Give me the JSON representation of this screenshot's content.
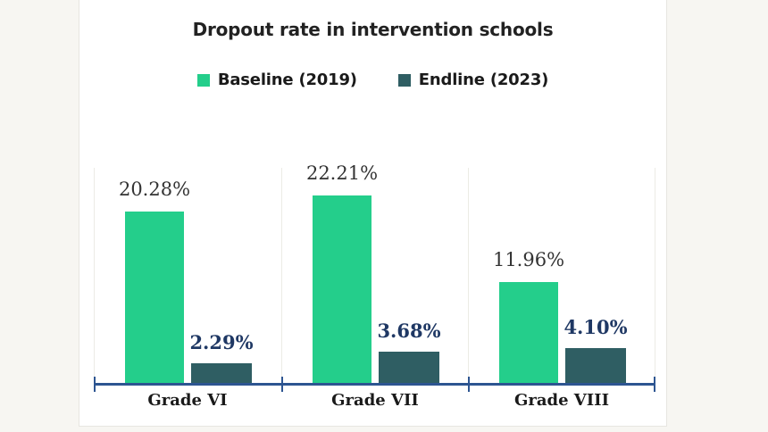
{
  "chart_data": {
    "type": "bar",
    "title": "Dropout rate in intervention schools",
    "categories": [
      "Grade VI",
      "Grade VII",
      "Grade VIII"
    ],
    "series": [
      {
        "name": "Baseline (2019)",
        "values": [
          20.28,
          22.21,
          11.96
        ],
        "color": "#24ce8b",
        "label_color": "#333333",
        "label_bold": false
      },
      {
        "name": "Endline (2023)",
        "values": [
          2.29,
          3.68,
          4.1
        ],
        "color": "#2f5e63",
        "label_color": "#1f3864",
        "label_bold": true
      }
    ],
    "value_suffix": "%",
    "data_labels": [
      [
        "20.28%",
        "22.21%",
        "11.96%"
      ],
      [
        "2.29%",
        "3.68%",
        "4.10%"
      ]
    ],
    "ylim": [
      0,
      25
    ],
    "grid": "vertical category separators only",
    "legend_position": "top",
    "xlabel": "",
    "ylabel": ""
  },
  "colors": {
    "axis": "#2d5591",
    "gridline": "#ecebe5",
    "panel_background": "#ffffff",
    "page_background": "#f7f6f2",
    "panel_border": "#e7e6e1",
    "title_text": "#222222",
    "legend_text": "#1a1a1a",
    "category_text": "#1a1a1a"
  }
}
